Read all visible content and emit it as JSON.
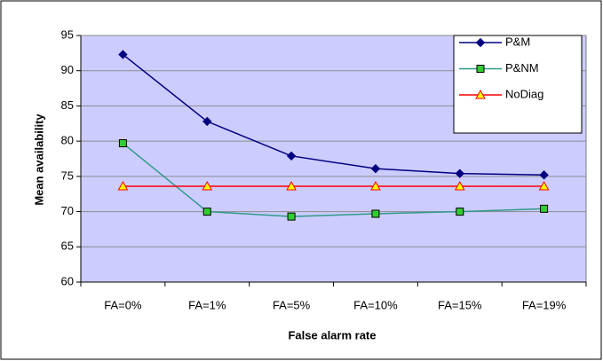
{
  "chart_data": {
    "type": "line",
    "x_label": "False alarm rate",
    "y_label": "Mean availability",
    "categories": [
      "FA=0%",
      "FA=1%",
      "FA=5%",
      "FA=10%",
      "FA=15%",
      "FA=19%"
    ],
    "series": [
      {
        "name": "P&M",
        "color": "#000080",
        "marker": "diamond",
        "marker_color": "#000080",
        "values": [
          92.3,
          82.8,
          77.9,
          76.1,
          75.4,
          75.2
        ]
      },
      {
        "name": "P&NM",
        "color": "#2f9a8a",
        "marker": "square",
        "marker_color": "#33cc33",
        "values": [
          79.7,
          70.0,
          69.3,
          69.7,
          70.0,
          70.4
        ]
      },
      {
        "name": "NoDiag",
        "color": "#ff0000",
        "marker": "triangle",
        "marker_color": "#ffff00",
        "values": [
          73.6,
          73.6,
          73.6,
          73.6,
          73.6,
          73.6
        ]
      }
    ],
    "ylim": [
      60,
      95
    ],
    "yticks": [
      60,
      65,
      70,
      75,
      80,
      85,
      90,
      95
    ],
    "grid": true,
    "legend": "top-right",
    "plot_background": "#ccccff"
  }
}
